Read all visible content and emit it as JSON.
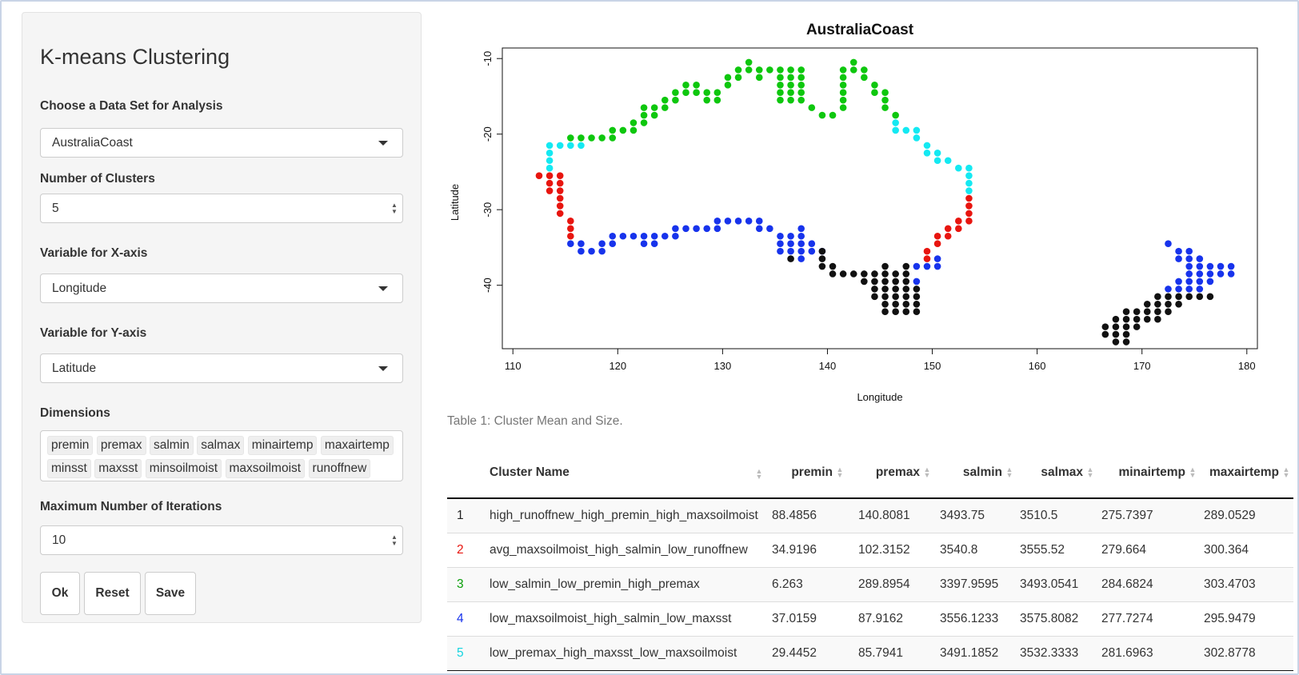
{
  "sidebar": {
    "title": "K-means Clustering",
    "dataset": {
      "label": "Choose a Data Set for Analysis",
      "value": "AustraliaCoast"
    },
    "clusters": {
      "label": "Number of Clusters",
      "value": "5"
    },
    "xvar": {
      "label": "Variable for X-axis",
      "value": "Longitude"
    },
    "yvar": {
      "label": "Variable for Y-axis",
      "value": "Latitude"
    },
    "dimensions": {
      "label": "Dimensions",
      "tags": [
        "premin",
        "premax",
        "salmin",
        "salmax",
        "minairtemp",
        "maxairtemp",
        "minsst",
        "maxsst",
        "minsoilmoist",
        "maxsoilmoist",
        "runoffnew"
      ]
    },
    "iterations": {
      "label": "Maximum Number of Iterations",
      "value": "10"
    },
    "buttons": {
      "ok": "Ok",
      "reset": "Reset",
      "save": "Save"
    }
  },
  "chart_data": {
    "type": "scatter",
    "title": "AustraliaCoast",
    "xlabel": "Longitude",
    "ylabel": "Latitude",
    "xlim": [
      110,
      180
    ],
    "ylim": [
      -48,
      -9
    ],
    "xticks": [
      110,
      120,
      130,
      140,
      150,
      160,
      170,
      180
    ],
    "yticks": [
      -10,
      -20,
      -30,
      -40
    ],
    "grid": false,
    "series": [
      {
        "color": "#e8150f",
        "points": [
          [
            112.5,
            -25.5
          ],
          [
            113.5,
            -25.5
          ],
          [
            113.5,
            -26.5
          ],
          [
            113.5,
            -27.5
          ],
          [
            114.5,
            -25.5
          ],
          [
            114.5,
            -26.5
          ],
          [
            114.5,
            -27.5
          ],
          [
            114.5,
            -28.5
          ],
          [
            114.5,
            -29.5
          ],
          [
            114.5,
            -30.5
          ],
          [
            115.5,
            -31.5
          ],
          [
            115.5,
            -32.5
          ],
          [
            115.5,
            -33.5
          ],
          [
            153.5,
            -28.5
          ],
          [
            153.5,
            -29.5
          ],
          [
            153.5,
            -30.5
          ],
          [
            153.5,
            -31.5
          ],
          [
            152.5,
            -31.5
          ],
          [
            152.5,
            -32.5
          ],
          [
            151.5,
            -32.5
          ],
          [
            151.5,
            -33.5
          ],
          [
            150.5,
            -33.5
          ],
          [
            150.5,
            -34.5
          ],
          [
            149.5,
            -35.5
          ],
          [
            149.5,
            -36.5
          ]
        ]
      },
      {
        "color": "#0ec70e",
        "points": [
          [
            115.5,
            -20.5
          ],
          [
            116.5,
            -20.5
          ],
          [
            117.5,
            -20.5
          ],
          [
            118.5,
            -20.5
          ],
          [
            119.5,
            -19.5
          ],
          [
            119.5,
            -20.5
          ],
          [
            120.5,
            -19.5
          ],
          [
            121.5,
            -18.5
          ],
          [
            121.5,
            -19.5
          ],
          [
            122.5,
            -17.5
          ],
          [
            122.5,
            -16.5
          ],
          [
            122.5,
            -18.5
          ],
          [
            123.5,
            -16.5
          ],
          [
            123.5,
            -17.5
          ],
          [
            124.5,
            -16.5
          ],
          [
            124.5,
            -15.5
          ],
          [
            125.5,
            -14.5
          ],
          [
            125.5,
            -15.5
          ],
          [
            126.5,
            -13.5
          ],
          [
            126.5,
            -14.5
          ],
          [
            127.5,
            -13.5
          ],
          [
            127.5,
            -14.5
          ],
          [
            128.5,
            -14.5
          ],
          [
            128.5,
            -15.5
          ],
          [
            129.5,
            -15.5
          ],
          [
            129.5,
            -14.5
          ],
          [
            130.5,
            -12.5
          ],
          [
            130.5,
            -13.5
          ],
          [
            131.5,
            -11.5
          ],
          [
            131.5,
            -12.5
          ],
          [
            132.5,
            -10.5
          ],
          [
            132.5,
            -11.5
          ],
          [
            133.5,
            -11.5
          ],
          [
            133.5,
            -12.5
          ],
          [
            134.5,
            -11.5
          ],
          [
            135.5,
            -11.5
          ],
          [
            136.5,
            -11.5
          ],
          [
            136.5,
            -12.5
          ],
          [
            136.5,
            -13.5
          ],
          [
            136.5,
            -14.5
          ],
          [
            136.5,
            -15.5
          ],
          [
            135.5,
            -12.5
          ],
          [
            135.5,
            -13.5
          ],
          [
            135.5,
            -14.5
          ],
          [
            135.5,
            -15.5
          ],
          [
            137.5,
            -11.5
          ],
          [
            137.5,
            -12.5
          ],
          [
            137.5,
            -13.5
          ],
          [
            137.5,
            -14.5
          ],
          [
            137.5,
            -15.5
          ],
          [
            138.5,
            -16.5
          ],
          [
            139.5,
            -17.5
          ],
          [
            140.5,
            -17.5
          ],
          [
            141.5,
            -16.5
          ],
          [
            141.5,
            -15.5
          ],
          [
            141.5,
            -14.5
          ],
          [
            141.5,
            -13.5
          ],
          [
            141.5,
            -12.5
          ],
          [
            141.5,
            -11.5
          ],
          [
            142.5,
            -10.5
          ],
          [
            142.5,
            -11.5
          ],
          [
            143.5,
            -11.5
          ],
          [
            143.5,
            -12.5
          ],
          [
            144.5,
            -13.5
          ],
          [
            144.5,
            -14.5
          ],
          [
            145.5,
            -14.5
          ],
          [
            145.5,
            -15.5
          ],
          [
            145.5,
            -16.5
          ],
          [
            146.5,
            -17.5
          ]
        ]
      },
      {
        "color": "#1733ec",
        "points": [
          [
            115.5,
            -34.5
          ],
          [
            116.5,
            -34.5
          ],
          [
            116.5,
            -35.5
          ],
          [
            117.5,
            -35.5
          ],
          [
            118.5,
            -35.5
          ],
          [
            118.5,
            -34.5
          ],
          [
            119.5,
            -34.5
          ],
          [
            119.5,
            -33.5
          ],
          [
            120.5,
            -33.5
          ],
          [
            121.5,
            -33.5
          ],
          [
            122.5,
            -33.5
          ],
          [
            122.5,
            -34.5
          ],
          [
            123.5,
            -33.5
          ],
          [
            123.5,
            -34.5
          ],
          [
            124.5,
            -33.5
          ],
          [
            125.5,
            -32.5
          ],
          [
            125.5,
            -33.5
          ],
          [
            126.5,
            -32.5
          ],
          [
            127.5,
            -32.5
          ],
          [
            128.5,
            -32.5
          ],
          [
            129.5,
            -31.5
          ],
          [
            129.5,
            -32.5
          ],
          [
            130.5,
            -31.5
          ],
          [
            131.5,
            -31.5
          ],
          [
            132.5,
            -31.5
          ],
          [
            133.5,
            -32.5
          ],
          [
            133.5,
            -31.5
          ],
          [
            134.5,
            -32.5
          ],
          [
            135.5,
            -33.5
          ],
          [
            135.5,
            -34.5
          ],
          [
            135.5,
            -35.5
          ],
          [
            136.5,
            -33.5
          ],
          [
            136.5,
            -34.5
          ],
          [
            136.5,
            -35.5
          ],
          [
            137.5,
            -32.5
          ],
          [
            137.5,
            -33.5
          ],
          [
            137.5,
            -34.5
          ],
          [
            137.5,
            -35.5
          ],
          [
            137.5,
            -36.5
          ],
          [
            138.5,
            -34.5
          ],
          [
            138.5,
            -35.5
          ],
          [
            139.5,
            -35.5
          ],
          [
            148.5,
            -37.5
          ],
          [
            148.5,
            -39.5
          ],
          [
            149.5,
            -37.5
          ],
          [
            150.5,
            -37.5
          ],
          [
            150.5,
            -36.5
          ],
          [
            172.5,
            -34.5
          ],
          [
            173.5,
            -35.5
          ],
          [
            174.5,
            -35.5
          ],
          [
            173.5,
            -36.5
          ],
          [
            174.5,
            -36.5
          ],
          [
            175.5,
            -36.5
          ],
          [
            174.5,
            -37.5
          ],
          [
            175.5,
            -37.5
          ],
          [
            176.5,
            -37.5
          ],
          [
            177.5,
            -37.5
          ],
          [
            178.5,
            -37.5
          ],
          [
            178.5,
            -38.5
          ],
          [
            174.5,
            -38.5
          ],
          [
            175.5,
            -38.5
          ],
          [
            176.5,
            -38.5
          ],
          [
            177.5,
            -38.5
          ],
          [
            173.5,
            -39.5
          ],
          [
            174.5,
            -39.5
          ],
          [
            175.5,
            -39.5
          ],
          [
            176.5,
            -39.5
          ],
          [
            172.5,
            -40.5
          ],
          [
            173.5,
            -40.5
          ],
          [
            174.5,
            -40.5
          ],
          [
            175.5,
            -40.5
          ]
        ]
      },
      {
        "color": "#111111",
        "points": [
          [
            136.5,
            -36.5
          ],
          [
            139.5,
            -35.5
          ],
          [
            139.5,
            -36.5
          ],
          [
            139.5,
            -37.5
          ],
          [
            140.5,
            -37.5
          ],
          [
            140.5,
            -38.5
          ],
          [
            141.5,
            -38.5
          ],
          [
            142.5,
            -38.5
          ],
          [
            143.5,
            -38.5
          ],
          [
            143.5,
            -39.5
          ],
          [
            144.5,
            -38.5
          ],
          [
            144.5,
            -39.5
          ],
          [
            144.5,
            -40.5
          ],
          [
            144.5,
            -41.5
          ],
          [
            145.5,
            -37.5
          ],
          [
            145.5,
            -38.5
          ],
          [
            145.5,
            -39.5
          ],
          [
            145.5,
            -40.5
          ],
          [
            145.5,
            -41.5
          ],
          [
            145.5,
            -42.5
          ],
          [
            145.5,
            -43.5
          ],
          [
            146.5,
            -38.5
          ],
          [
            146.5,
            -39.5
          ],
          [
            146.5,
            -40.5
          ],
          [
            146.5,
            -41.5
          ],
          [
            146.5,
            -42.5
          ],
          [
            146.5,
            -43.5
          ],
          [
            147.5,
            -37.5
          ],
          [
            147.5,
            -38.5
          ],
          [
            147.5,
            -39.5
          ],
          [
            147.5,
            -40.5
          ],
          [
            147.5,
            -41.5
          ],
          [
            147.5,
            -42.5
          ],
          [
            147.5,
            -43.5
          ],
          [
            148.5,
            -40.5
          ],
          [
            148.5,
            -41.5
          ],
          [
            148.5,
            -42.5
          ],
          [
            148.5,
            -43.5
          ],
          [
            166.5,
            -45.5
          ],
          [
            166.5,
            -46.5
          ],
          [
            167.5,
            -44.5
          ],
          [
            167.5,
            -45.5
          ],
          [
            167.5,
            -46.5
          ],
          [
            167.5,
            -47.5
          ],
          [
            168.5,
            -43.5
          ],
          [
            168.5,
            -44.5
          ],
          [
            168.5,
            -45.5
          ],
          [
            168.5,
            -46.5
          ],
          [
            168.5,
            -47.5
          ],
          [
            169.5,
            -43.5
          ],
          [
            169.5,
            -44.5
          ],
          [
            169.5,
            -45.5
          ],
          [
            170.5,
            -42.5
          ],
          [
            170.5,
            -43.5
          ],
          [
            170.5,
            -44.5
          ],
          [
            171.5,
            -41.5
          ],
          [
            171.5,
            -42.5
          ],
          [
            171.5,
            -43.5
          ],
          [
            171.5,
            -44.5
          ],
          [
            172.5,
            -41.5
          ],
          [
            172.5,
            -42.5
          ],
          [
            172.5,
            -43.5
          ],
          [
            173.5,
            -41.5
          ],
          [
            173.5,
            -42.5
          ],
          [
            174.5,
            -41.5
          ],
          [
            175.5,
            -41.5
          ],
          [
            176.5,
            -41.5
          ]
        ]
      },
      {
        "color": "#14e9f2",
        "points": [
          [
            113.5,
            -21.5
          ],
          [
            113.5,
            -22.5
          ],
          [
            113.5,
            -23.5
          ],
          [
            113.5,
            -24.5
          ],
          [
            114.5,
            -21.5
          ],
          [
            115.5,
            -21.5
          ],
          [
            116.5,
            -21.5
          ],
          [
            146.5,
            -18.5
          ],
          [
            146.5,
            -19.5
          ],
          [
            147.5,
            -19.5
          ],
          [
            148.5,
            -19.5
          ],
          [
            148.5,
            -20.5
          ],
          [
            149.5,
            -21.5
          ],
          [
            149.5,
            -22.5
          ],
          [
            150.5,
            -22.5
          ],
          [
            150.5,
            -23.5
          ],
          [
            151.5,
            -23.5
          ],
          [
            152.5,
            -24.5
          ],
          [
            153.5,
            -24.5
          ],
          [
            153.5,
            -25.5
          ],
          [
            153.5,
            -26.5
          ],
          [
            153.5,
            -27.5
          ]
        ]
      }
    ]
  },
  "table": {
    "caption": "Table 1: Cluster Mean and Size.",
    "columns": [
      "",
      "Cluster Name",
      "premin",
      "premax",
      "salmin",
      "salmax",
      "minairtemp",
      "maxairtemp"
    ],
    "rows": [
      {
        "id": "1",
        "color": "#222222",
        "name": "high_runoffnew_high_premin_high_maxsoilmoist",
        "premin": "88.4856",
        "premax": "140.8081",
        "salmin": "3493.75",
        "salmax": "3510.5",
        "minairtemp": "275.7397",
        "maxairtemp": "289.0529"
      },
      {
        "id": "2",
        "color": "#e8150f",
        "name": "avg_maxsoilmoist_high_salmin_low_runoffnew",
        "premin": "34.9196",
        "premax": "102.3152",
        "salmin": "3540.8",
        "salmax": "3555.52",
        "minairtemp": "279.664",
        "maxairtemp": "300.364"
      },
      {
        "id": "3",
        "color": "#0a9e0a",
        "name": "low_salmin_low_premin_high_premax",
        "premin": "6.263",
        "premax": "289.8954",
        "salmin": "3397.9595",
        "salmax": "3493.0541",
        "minairtemp": "284.6824",
        "maxairtemp": "303.4703"
      },
      {
        "id": "4",
        "color": "#1733ec",
        "name": "low_maxsoilmoist_high_salmin_low_maxsst",
        "premin": "37.0159",
        "premax": "87.9162",
        "salmin": "3556.1233",
        "salmax": "3575.8082",
        "minairtemp": "277.7274",
        "maxairtemp": "295.9479"
      },
      {
        "id": "5",
        "color": "#14d4e0",
        "name": "low_premax_high_maxsst_low_maxsoilmoist",
        "premin": "29.4452",
        "premax": "85.7941",
        "salmin": "3491.1852",
        "salmax": "3532.3333",
        "minairtemp": "281.6963",
        "maxairtemp": "302.8778"
      }
    ]
  }
}
